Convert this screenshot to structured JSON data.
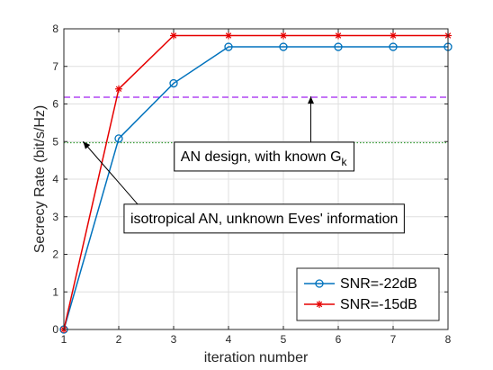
{
  "chart_data": {
    "type": "line",
    "title": "",
    "xlabel": "iteration number",
    "ylabel": "Secrecy Rate (bit/s/Hz)",
    "xlim": [
      1,
      8
    ],
    "ylim": [
      0,
      8
    ],
    "xticks": [
      1,
      2,
      3,
      4,
      5,
      6,
      7,
      8
    ],
    "yticks": [
      0,
      1,
      2,
      3,
      4,
      5,
      6,
      7,
      8
    ],
    "grid": true,
    "legend_position": "bottom-right",
    "x": [
      1,
      2,
      3,
      4,
      5,
      6,
      7,
      8
    ],
    "series": [
      {
        "name": "SNR=-22dB",
        "values": [
          0,
          5.08,
          6.55,
          7.52,
          7.52,
          7.52,
          7.52,
          7.52
        ],
        "color": "#0072BD",
        "marker": "circle"
      },
      {
        "name": "SNR=-15dB",
        "values": [
          0,
          6.4,
          7.82,
          7.82,
          7.82,
          7.82,
          7.82,
          7.82
        ],
        "color": "#E60000",
        "marker": "asterisk"
      }
    ],
    "reference_lines": [
      {
        "y": 6.18,
        "color": "#A020F0",
        "style": "dashed"
      },
      {
        "y": 4.97,
        "color": "#339933",
        "style": "dotted"
      }
    ],
    "annotations": [
      {
        "text": "AN design, with known G",
        "subscript": "k",
        "text_x": 4.65,
        "text_y": 4.6,
        "arrow_to": [
          5.5,
          6.2
        ]
      },
      {
        "text": "isotropical AN, unknown Eves' information",
        "text_x": 4.65,
        "text_y": 2.95,
        "arrow_to": [
          1.35,
          5.0
        ]
      }
    ]
  }
}
